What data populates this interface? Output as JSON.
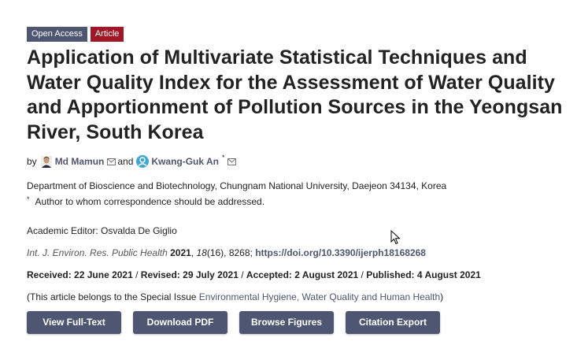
{
  "badges": {
    "open_access": "Open Access",
    "article": "Article"
  },
  "title": "Application of Multivariate Statistical Techniques and Water Quality Index for the Assessment of Water Quality and Apportionment of Pollution Sources in the Yeongsan River, South Korea",
  "authors": {
    "by": "by",
    "author1": "Md Mamun",
    "and": "and",
    "author2": "Kwang-Guk An",
    "author2_mark": "*"
  },
  "affiliation": "Department of Bioscience and Biotechnology, Chungnam National University, Daejeon 34134, Korea",
  "correspondence": {
    "mark": "*",
    "text": "Author to whom correspondence should be addressed."
  },
  "editor": "Academic Editor: Osvalda De Giglio",
  "citation": {
    "journal": "Int. J. Environ. Res. Public Health",
    "year": "2021",
    "volume": "18",
    "issue_pages": "(16), 8268;",
    "doi": "https://doi.org/10.3390/ijerph18168268"
  },
  "dates": {
    "received_label": "Received:",
    "received": "22 June 2021",
    "revised_label": "Revised:",
    "revised": "29 July 2021",
    "accepted_label": "Accepted:",
    "accepted": "2 August 2021",
    "published_label": "Published:",
    "published": "4 August 2021"
  },
  "special_issue": {
    "prefix": "(This article belongs to the Special Issue ",
    "link": "Environmental Hygiene, Water Quality and Human Health",
    "suffix": ")"
  },
  "buttons": {
    "full_text": "View Full-Text",
    "pdf": "Download PDF",
    "figures": "Browse Figures",
    "citation": "Citation Export"
  },
  "colors": {
    "accent": "#4f5671",
    "article_badge": "#a01826"
  }
}
